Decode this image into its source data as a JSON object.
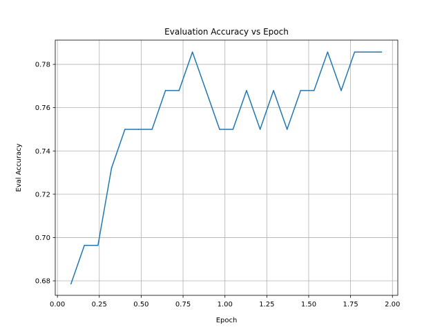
{
  "chart_data": {
    "type": "line",
    "title": "Evaluation Accuracy vs Epoch",
    "xlabel": "Epoch",
    "ylabel": "Eval Accuracy",
    "xlim": [
      -0.013,
      2.032
    ],
    "ylim": [
      0.6733,
      0.7912
    ],
    "grid": true,
    "xticks": [
      0.0,
      0.25,
      0.5,
      0.75,
      1.0,
      1.25,
      1.5,
      1.75,
      2.0
    ],
    "xtick_labels": [
      "0.00",
      "0.25",
      "0.50",
      "0.75",
      "1.00",
      "1.25",
      "1.50",
      "1.75",
      "2.00"
    ],
    "yticks": [
      0.68,
      0.7,
      0.72,
      0.74,
      0.76,
      0.78
    ],
    "ytick_labels": [
      "0.68",
      "0.70",
      "0.72",
      "0.74",
      "0.76",
      "0.78"
    ],
    "line_color": "#1f77b4",
    "series": [
      {
        "x": [
          0.081,
          0.161,
          0.242,
          0.323,
          0.403,
          0.484,
          0.565,
          0.645,
          0.726,
          0.806,
          0.887,
          0.968,
          1.048,
          1.129,
          1.21,
          1.29,
          1.371,
          1.452,
          1.532,
          1.613,
          1.694,
          1.774,
          1.855,
          1.935
        ],
        "values": [
          0.6786,
          0.6964,
          0.6964,
          0.7321,
          0.75,
          0.75,
          0.75,
          0.7679,
          0.7679,
          0.7857,
          0.7679,
          0.75,
          0.75,
          0.7679,
          0.75,
          0.7679,
          0.75,
          0.7679,
          0.7679,
          0.7857,
          0.7679,
          0.7857,
          0.7857,
          0.7857
        ]
      }
    ]
  }
}
